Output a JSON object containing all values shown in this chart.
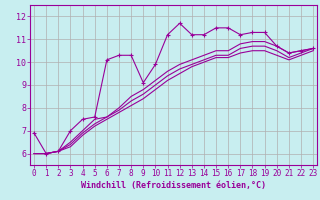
{
  "xlabel": "Windchill (Refroidissement éolien,°C)",
  "background_color": "#c8eef0",
  "grid_color": "#b0b0b0",
  "line_color": "#990099",
  "xlim": [
    -0.3,
    23.3
  ],
  "ylim": [
    5.5,
    12.5
  ],
  "yticks": [
    6,
    7,
    8,
    9,
    10,
    11,
    12
  ],
  "xticks": [
    0,
    1,
    2,
    3,
    4,
    5,
    6,
    7,
    8,
    9,
    10,
    11,
    12,
    13,
    14,
    15,
    16,
    17,
    18,
    19,
    20,
    21,
    22,
    23
  ],
  "series": [
    [
      6.9,
      6.0,
      6.1,
      7.0,
      7.5,
      7.6,
      10.1,
      10.3,
      10.3,
      9.1,
      9.9,
      11.2,
      11.7,
      11.2,
      11.2,
      11.5,
      11.5,
      11.2,
      11.3,
      11.3,
      10.7,
      10.4,
      10.5,
      10.6
    ],
    [
      6.0,
      6.0,
      6.1,
      6.5,
      7.0,
      7.5,
      7.6,
      8.0,
      8.5,
      8.8,
      9.2,
      9.6,
      9.9,
      10.1,
      10.3,
      10.5,
      10.5,
      10.8,
      10.9,
      10.9,
      10.7,
      10.4,
      10.5,
      10.6
    ],
    [
      6.0,
      6.0,
      6.1,
      6.4,
      6.9,
      7.3,
      7.6,
      7.9,
      8.3,
      8.6,
      9.0,
      9.4,
      9.7,
      9.9,
      10.1,
      10.3,
      10.3,
      10.6,
      10.7,
      10.7,
      10.5,
      10.2,
      10.4,
      10.6
    ],
    [
      6.0,
      6.0,
      6.1,
      6.3,
      6.8,
      7.2,
      7.5,
      7.8,
      8.1,
      8.4,
      8.8,
      9.2,
      9.5,
      9.8,
      10.0,
      10.2,
      10.2,
      10.4,
      10.5,
      10.5,
      10.3,
      10.1,
      10.3,
      10.5
    ]
  ],
  "marker_series": 0,
  "tick_fontsize": 5.5,
  "xlabel_fontsize": 6.0
}
